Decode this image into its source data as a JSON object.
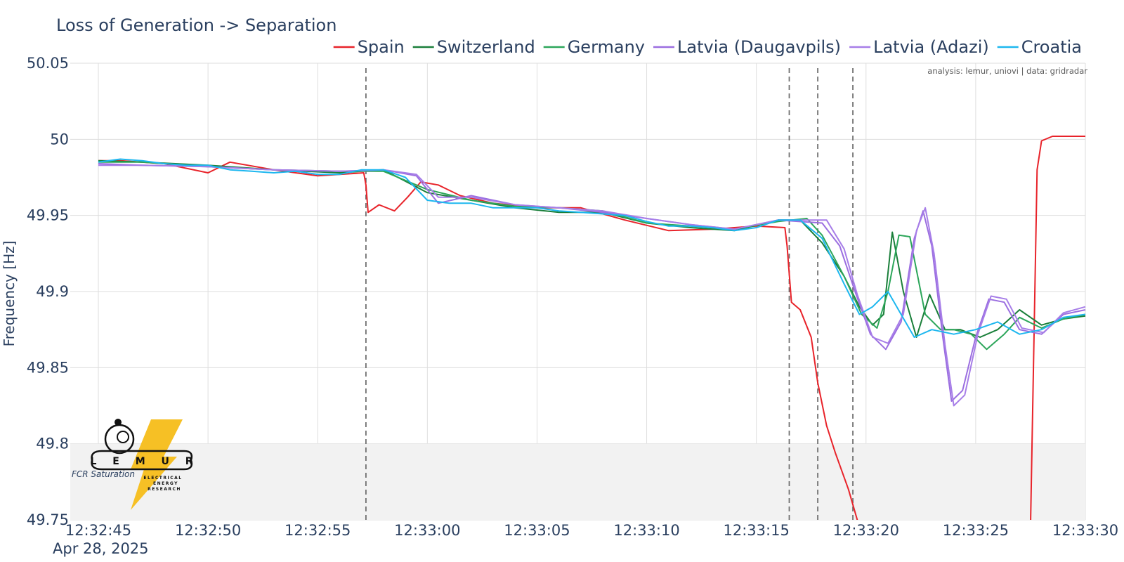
{
  "chart_data": {
    "type": "line",
    "title": "Loss of Generation -> Separation",
    "xlabel": "",
    "ylabel": "Frequency [Hz]",
    "ylim": [
      49.75,
      50.05
    ],
    "yticks": [
      "50.05",
      "50",
      "49.95",
      "49.9",
      "49.85",
      "49.8",
      "49.75"
    ],
    "xlim": [
      "12:32:45",
      "12:33:30"
    ],
    "xticks": [
      "12:32:45",
      "12:32:50",
      "12:32:55",
      "12:33:00",
      "12:33:05",
      "12:33:10",
      "12:33:15",
      "12:33:20",
      "12:33:25",
      "12:33:30"
    ],
    "date_label": "Apr 28, 2025",
    "grid": true,
    "legend_position": "top-right",
    "shaded_band": {
      "label": "FCR Saturation",
      "y_range": [
        49.75,
        49.8
      ]
    },
    "event_markers": [
      "12:32:57.2",
      "12:33:16.5",
      "12:33:17.8",
      "12:33:19.4"
    ],
    "credit": "analysis: lemur, uniovi | data: gridradar",
    "logo_text": {
      "name": "L E M U R",
      "sub1": "ELECTRICAL",
      "sub2": "ENERGY",
      "sub3": "RESEARCH"
    },
    "series": [
      {
        "name": "Spain",
        "color": "#e8232a",
        "x": [
          "12:32:45",
          "12:32:46",
          "12:32:48",
          "12:32:50",
          "12:32:51",
          "12:32:53",
          "12:32:55",
          "12:32:57.1",
          "12:32:57.2",
          "12:32:57.3",
          "12:32:57.8",
          "12:32:58.5",
          "12:32:59.1",
          "12:32:59.7",
          "12:33:00.5",
          "12:33:01.5",
          "12:33:03",
          "12:33:05",
          "12:33:07",
          "12:33:09",
          "12:33:11",
          "12:33:13",
          "12:33:15",
          "12:33:16.3",
          "12:33:16.4",
          "12:33:16.6",
          "12:33:17",
          "12:33:17.5",
          "12:33:17.8",
          "12:33:18.2",
          "12:33:18.6",
          "12:33:19.2",
          "12:33:19.6",
          "12:33:19.7",
          "12:33:27.5",
          "12:33:27.8",
          "12:33:28",
          "12:33:28.5",
          "12:33:30"
        ],
        "values": [
          49.986,
          49.986,
          49.984,
          49.978,
          49.985,
          49.98,
          49.976,
          49.978,
          49.97,
          49.952,
          49.957,
          49.953,
          49.962,
          49.972,
          49.97,
          49.963,
          49.958,
          49.955,
          49.955,
          49.947,
          49.94,
          49.941,
          49.943,
          49.942,
          49.93,
          49.893,
          49.888,
          49.87,
          49.84,
          49.812,
          49.794,
          49.77,
          49.75,
          49.745,
          49.745,
          49.98,
          49.999,
          50.002,
          50.002
        ]
      },
      {
        "name": "Switzerland",
        "color": "#1a7f3a",
        "x": [
          "12:32:45",
          "12:32:47",
          "12:32:50",
          "12:32:53",
          "12:32:56",
          "12:32:58",
          "12:33:00",
          "12:33:02",
          "12:33:04",
          "12:33:06",
          "12:33:08",
          "12:33:10",
          "12:33:12",
          "12:33:14",
          "12:33:16",
          "12:33:17",
          "12:33:18",
          "12:33:19",
          "12:33:19.7",
          "12:33:20.3",
          "12:33:20.8",
          "12:33:21.2",
          "12:33:21.7",
          "12:33:22.3",
          "12:33:22.9",
          "12:33:23.6",
          "12:33:24.3",
          "12:33:25.2",
          "12:33:26",
          "12:33:27",
          "12:33:28",
          "12:33:29",
          "12:33:30"
        ],
        "values": [
          49.986,
          49.985,
          49.983,
          49.98,
          49.978,
          49.98,
          49.965,
          49.96,
          49.955,
          49.952,
          49.952,
          49.945,
          49.942,
          49.94,
          49.947,
          49.947,
          49.932,
          49.91,
          49.89,
          49.878,
          49.885,
          49.939,
          49.9,
          49.87,
          49.898,
          49.875,
          49.875,
          49.87,
          49.875,
          49.888,
          49.878,
          49.882,
          49.884
        ]
      },
      {
        "name": "Germany",
        "color": "#2ca65a",
        "x": [
          "12:32:45",
          "12:32:47",
          "12:32:50",
          "12:32:53",
          "12:32:56",
          "12:32:58",
          "12:33:00",
          "12:33:02",
          "12:33:04",
          "12:33:06",
          "12:33:08",
          "12:33:10",
          "12:33:12",
          "12:33:14",
          "12:33:16",
          "12:33:17.3",
          "12:33:18",
          "12:33:19",
          "12:33:19.8",
          "12:33:20.5",
          "12:33:21",
          "12:33:21.5",
          "12:33:22",
          "12:33:22.7",
          "12:33:23.4",
          "12:33:24",
          "12:33:24.8",
          "12:33:25.5",
          "12:33:26.3",
          "12:33:27",
          "12:33:28",
          "12:33:29",
          "12:33:30"
        ],
        "values": [
          49.985,
          49.985,
          49.982,
          49.98,
          49.979,
          49.979,
          49.967,
          49.96,
          49.956,
          49.955,
          49.953,
          49.945,
          49.943,
          49.941,
          49.946,
          49.948,
          49.937,
          49.91,
          49.885,
          49.876,
          49.9,
          49.937,
          49.936,
          49.885,
          49.875,
          49.875,
          49.872,
          49.862,
          49.872,
          49.883,
          49.876,
          49.882,
          49.885
        ]
      },
      {
        "name": "Latvia (Daugavpils)",
        "color": "#9b6ee0",
        "x": [
          "12:32:45",
          "12:32:47",
          "12:32:50",
          "12:32:53",
          "12:32:56",
          "12:32:58",
          "12:32:59.5",
          "12:33:00.5",
          "12:33:02",
          "12:33:04",
          "12:33:06",
          "12:33:08",
          "12:33:10",
          "12:33:12",
          "12:33:14",
          "12:33:16",
          "12:33:18",
          "12:33:18.8",
          "12:33:19.5",
          "12:33:20.2",
          "12:33:20.9",
          "12:33:21.6",
          "12:33:22.2",
          "12:33:22.6",
          "12:33:23",
          "12:33:23.5",
          "12:33:23.9",
          "12:33:24.4",
          "12:33:25",
          "12:33:25.6",
          "12:33:26.3",
          "12:33:27",
          "12:33:28",
          "12:33:29",
          "12:33:30"
        ],
        "values": [
          49.984,
          49.983,
          49.982,
          49.98,
          49.979,
          49.98,
          49.976,
          49.958,
          49.963,
          49.957,
          49.955,
          49.952,
          49.948,
          49.944,
          49.941,
          49.947,
          49.945,
          49.93,
          49.9,
          49.872,
          49.862,
          49.88,
          49.935,
          49.953,
          49.93,
          49.87,
          49.828,
          49.835,
          49.87,
          49.895,
          49.893,
          49.875,
          49.872,
          49.885,
          49.888
        ]
      },
      {
        "name": "Latvia (Adazi)",
        "color": "#a77ee8",
        "x": [
          "12:32:45",
          "12:32:47",
          "12:32:50",
          "12:32:53",
          "12:32:56",
          "12:32:58",
          "12:32:59.5",
          "12:33:00.5",
          "12:33:02",
          "12:33:04",
          "12:33:06",
          "12:33:08",
          "12:33:10",
          "12:33:12",
          "12:33:14",
          "12:33:16",
          "12:33:18.2",
          "12:33:19",
          "12:33:19.6",
          "12:33:20.3",
          "12:33:21",
          "12:33:21.7",
          "12:33:22.3",
          "12:33:22.7",
          "12:33:23.1",
          "12:33:23.6",
          "12:33:24",
          "12:33:24.5",
          "12:33:25.1",
          "12:33:25.7",
          "12:33:26.4",
          "12:33:27.1",
          "12:33:28.1",
          "12:33:29",
          "12:33:30"
        ],
        "values": [
          49.983,
          49.983,
          49.982,
          49.98,
          49.979,
          49.98,
          49.977,
          49.962,
          49.962,
          49.957,
          49.955,
          49.953,
          49.948,
          49.944,
          49.941,
          49.947,
          49.947,
          49.928,
          49.898,
          49.87,
          49.866,
          49.885,
          49.94,
          49.955,
          49.925,
          49.865,
          49.825,
          49.832,
          49.872,
          49.897,
          49.895,
          49.876,
          49.873,
          49.886,
          49.89
        ]
      },
      {
        "name": "Croatia",
        "color": "#1db7ef",
        "x": [
          "12:32:45",
          "12:32:46",
          "12:32:47",
          "12:32:48",
          "12:32:49",
          "12:32:50",
          "12:32:51",
          "12:32:52",
          "12:32:53",
          "12:32:54",
          "12:32:55",
          "12:32:56",
          "12:32:57",
          "12:32:58",
          "12:32:59",
          "12:33:00",
          "12:33:01",
          "12:33:02",
          "12:33:03",
          "12:33:04",
          "12:33:05",
          "12:33:06",
          "12:33:07",
          "12:33:08",
          "12:33:09",
          "12:33:10",
          "12:33:11",
          "12:33:12",
          "12:33:13",
          "12:33:14",
          "12:33:15",
          "12:33:16",
          "12:33:17",
          "12:33:18",
          "12:33:19",
          "12:33:19.7",
          "12:33:20.3",
          "12:33:21",
          "12:33:21.6",
          "12:33:22.2",
          "12:33:23",
          "12:33:24",
          "12:33:25",
          "12:33:26",
          "12:33:27",
          "12:33:28",
          "12:33:29",
          "12:33:30"
        ],
        "values": [
          49.985,
          49.987,
          49.986,
          49.984,
          49.983,
          49.983,
          49.98,
          49.979,
          49.978,
          49.979,
          49.977,
          49.977,
          49.98,
          49.98,
          49.975,
          49.96,
          49.958,
          49.958,
          49.955,
          49.955,
          49.955,
          49.953,
          49.952,
          49.951,
          49.95,
          49.946,
          49.943,
          49.943,
          49.942,
          49.94,
          49.942,
          49.947,
          49.947,
          49.935,
          49.905,
          49.885,
          49.89,
          49.9,
          49.885,
          49.87,
          49.875,
          49.872,
          49.875,
          49.88,
          49.872,
          49.875,
          49.883,
          49.885
        ]
      }
    ]
  }
}
